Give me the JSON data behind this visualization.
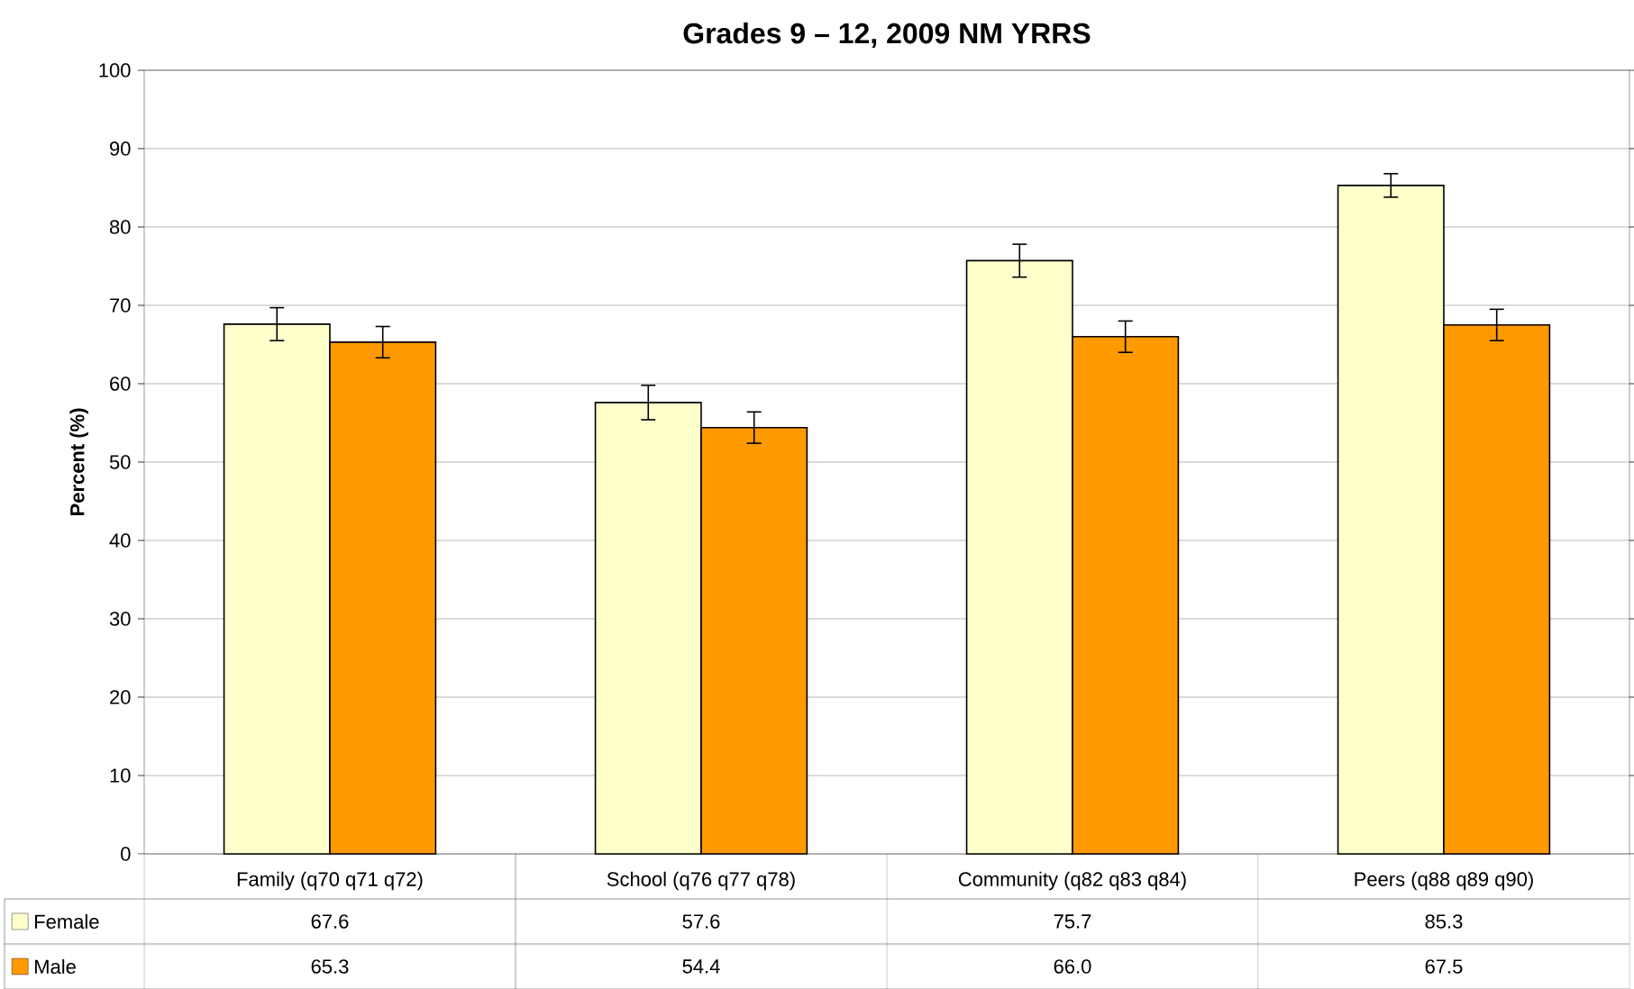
{
  "chart_data": {
    "type": "bar",
    "title": "Grades 9 – 12, 2009 NM YRRS",
    "ylabel": "Percent (%)",
    "categories": [
      "Family (q70 q71 q72)",
      "School (q76 q77 q78)",
      "Community (q82 q83 q84)",
      "Peers (q88 q89 q90)"
    ],
    "series": [
      {
        "name": "Female",
        "color": "#ffffcc",
        "values": [
          67.6,
          57.6,
          75.7,
          85.3
        ],
        "value_labels": [
          "67.6",
          "57.6",
          "75.7",
          "85.3"
        ],
        "errors": [
          2.1,
          2.2,
          2.1,
          1.5
        ]
      },
      {
        "name": "Male",
        "color": "#ff9900",
        "values": [
          65.3,
          54.4,
          66.0,
          67.5
        ],
        "value_labels": [
          "65.3",
          "54.4",
          "66.0",
          "67.5"
        ],
        "errors": [
          2.0,
          2.0,
          2.0,
          2.0
        ]
      }
    ],
    "ylim": [
      0,
      100
    ],
    "yticks": [
      0,
      10,
      20,
      30,
      40,
      50,
      60,
      70,
      80,
      90,
      100
    ],
    "grid": "y",
    "legend": "bottom"
  }
}
